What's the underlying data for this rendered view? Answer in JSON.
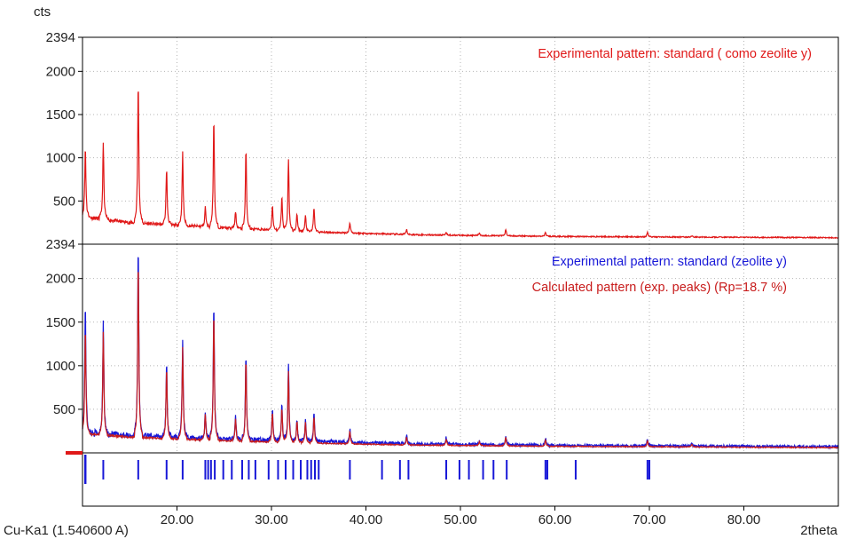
{
  "chart_data": {
    "type": "line",
    "y_unit_label": "cts",
    "x_axis_label": "2theta",
    "radiation_label": "Cu-Ka1 (1.540600 A)",
    "xlim": [
      10,
      90
    ],
    "x_ticks": [
      20,
      30,
      40,
      50,
      60,
      70,
      80
    ],
    "x_tick_labels": [
      "20.00",
      "30.00",
      "40.00",
      "50.00",
      "60.00",
      "70.00",
      "80.00"
    ],
    "grid": true,
    "panels": [
      {
        "ylim": [
          0,
          2394
        ],
        "y_ticks": [
          500,
          1000,
          1500,
          2000,
          2394
        ],
        "y_tick_labels": [
          "500",
          "1000",
          "1500",
          "2000",
          "2394"
        ],
        "legend_placement": "top-right",
        "series": [
          {
            "name": "Experimental pattern: standard ( como zeolite y)",
            "color": "#e01818",
            "baseline": [
              [
                10,
                320
              ],
              [
                15,
                250
              ],
              [
                25,
                190
              ],
              [
                35,
                140
              ],
              [
                45,
                110
              ],
              [
                60,
                90
              ],
              [
                75,
                82
              ],
              [
                90,
                75
              ]
            ],
            "peaks": [
              [
                10.3,
                1130
              ],
              [
                12.2,
                1160
              ],
              [
                15.9,
                1880
              ],
              [
                18.9,
                880
              ],
              [
                20.6,
                1060
              ],
              [
                23.0,
                430
              ],
              [
                23.9,
                1460
              ],
              [
                26.2,
                380
              ],
              [
                27.3,
                1100
              ],
              [
                30.1,
                450
              ],
              [
                31.1,
                550
              ],
              [
                31.8,
                980
              ],
              [
                32.7,
                350
              ],
              [
                33.6,
                330
              ],
              [
                34.5,
                420
              ],
              [
                38.3,
                250
              ],
              [
                44.3,
                170
              ],
              [
                48.5,
                140
              ],
              [
                52.0,
                130
              ],
              [
                54.8,
                170
              ],
              [
                59.0,
                140
              ],
              [
                69.8,
                140
              ],
              [
                74.5,
                95
              ]
            ]
          }
        ]
      },
      {
        "ylim": [
          0,
          2394
        ],
        "y_ticks": [
          500,
          1000,
          1500,
          2000,
          2394
        ],
        "y_tick_labels": [
          "500",
          "1000",
          "1500",
          "2000",
          "2394"
        ],
        "legend_placement": "top-right",
        "series": [
          {
            "name": "Experimental pattern: standard (zeolite y)",
            "color": "#1818d8",
            "baseline": [
              [
                10,
                240
              ],
              [
                15,
                200
              ],
              [
                25,
                160
              ],
              [
                35,
                130
              ],
              [
                45,
                105
              ],
              [
                60,
                85
              ],
              [
                75,
                78
              ],
              [
                90,
                70
              ]
            ],
            "peaks": [
              [
                10.3,
                1720
              ],
              [
                12.2,
                1480
              ],
              [
                15.9,
                2394
              ],
              [
                18.9,
                1040
              ],
              [
                20.6,
                1300
              ],
              [
                23.0,
                480
              ],
              [
                23.9,
                1720
              ],
              [
                26.2,
                420
              ],
              [
                27.3,
                1130
              ],
              [
                30.1,
                500
              ],
              [
                31.1,
                560
              ],
              [
                31.8,
                1010
              ],
              [
                32.7,
                400
              ],
              [
                33.6,
                380
              ],
              [
                34.5,
                450
              ],
              [
                38.3,
                280
              ],
              [
                44.3,
                200
              ],
              [
                48.5,
                180
              ],
              [
                52.0,
                150
              ],
              [
                54.8,
                200
              ],
              [
                59.0,
                170
              ],
              [
                69.8,
                160
              ],
              [
                74.5,
                110
              ]
            ]
          },
          {
            "name": "Calculated pattern (exp. peaks) (Rp=18.7 %)",
            "color": "#c81c1c",
            "baseline": [
              [
                10,
                220
              ],
              [
                15,
                180
              ],
              [
                25,
                140
              ],
              [
                35,
                110
              ],
              [
                45,
                90
              ],
              [
                60,
                75
              ],
              [
                75,
                68
              ],
              [
                90,
                60
              ]
            ],
            "peaks": [
              [
                10.3,
                1450
              ],
              [
                12.2,
                1380
              ],
              [
                15.9,
                2220
              ],
              [
                18.9,
                980
              ],
              [
                20.6,
                1220
              ],
              [
                23.0,
                450
              ],
              [
                23.9,
                1620
              ],
              [
                26.2,
                390
              ],
              [
                27.3,
                1080
              ],
              [
                30.1,
                470
              ],
              [
                31.1,
                520
              ],
              [
                31.8,
                940
              ],
              [
                32.7,
                370
              ],
              [
                33.6,
                350
              ],
              [
                34.5,
                420
              ],
              [
                38.3,
                250
              ],
              [
                44.3,
                180
              ],
              [
                48.5,
                160
              ],
              [
                52.0,
                130
              ],
              [
                54.8,
                180
              ],
              [
                59.0,
                150
              ],
              [
                69.8,
                140
              ],
              [
                74.5,
                95
              ]
            ]
          }
        ]
      }
    ],
    "peak_markers": {
      "color": "#1818d8",
      "positions": [
        10.3,
        12.2,
        15.9,
        18.9,
        20.6,
        23.0,
        23.3,
        23.6,
        24.0,
        24.9,
        25.8,
        26.9,
        27.6,
        28.3,
        29.7,
        30.7,
        31.5,
        32.3,
        33.1,
        33.8,
        34.2,
        34.6,
        35.0,
        38.3,
        41.7,
        43.6,
        44.5,
        48.5,
        49.9,
        50.9,
        52.4,
        53.5,
        54.9,
        59.0,
        59.2,
        62.2,
        69.8,
        70.0
      ]
    }
  }
}
